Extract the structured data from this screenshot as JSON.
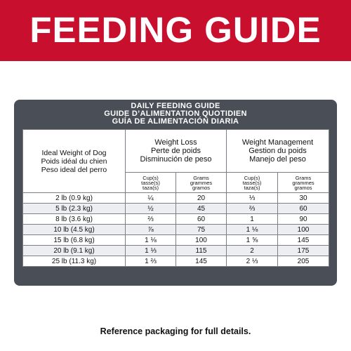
{
  "banner": {
    "title": "FEEDING GUIDE",
    "color": "#c8102e"
  },
  "card": {
    "title_lines": [
      "DAILY FEEDING GUIDE",
      "GUIDE D’ALIMENTATION QUOTIDIEN",
      "GUÍA DE ALIMENTACIÓN DIARIA"
    ],
    "color": "#4a4f57"
  },
  "table": {
    "ideal_header": [
      "Ideal Weight of Dog",
      "Poids idéal du chien",
      "Peso ideal del perro"
    ],
    "groups": [
      {
        "lines": [
          "Weight Loss",
          "Perte de poids",
          "Disminución de peso"
        ]
      },
      {
        "lines": [
          "Weight Management",
          "Gestion du poids",
          "Manejo del peso"
        ]
      }
    ],
    "sub_cup": [
      "Cup(s)",
      "tasse(s)",
      "taza(s)"
    ],
    "sub_grams": [
      "Grams",
      "grammes",
      "gramos"
    ],
    "rows": [
      {
        "weight": "2 lb (0.9 kg)",
        "loss_cup": "¼",
        "loss_g": "20",
        "mgmt_cup": "⅓",
        "mgmt_g": "30"
      },
      {
        "weight": "5 lb (2.3 kg)",
        "loss_cup": "½",
        "loss_g": "45",
        "mgmt_cup": "⅔",
        "mgmt_g": "60"
      },
      {
        "weight": "8 lb (3.6 kg)",
        "loss_cup": "⅔",
        "loss_g": "60",
        "mgmt_cup": "1",
        "mgmt_g": "90"
      },
      {
        "weight": "10 lb (4.5 kg)",
        "loss_cup": "⅞",
        "loss_g": "75",
        "mgmt_cup": "1 ⅛",
        "mgmt_g": "100"
      },
      {
        "weight": "15 lb (6.8 kg)",
        "loss_cup": "1 ⅛",
        "loss_g": "100",
        "mgmt_cup": "1 ⅝",
        "mgmt_g": "145"
      },
      {
        "weight": "20 lb (9.1 kg)",
        "loss_cup": "1 ⅓",
        "loss_g": "115",
        "mgmt_cup": "2",
        "mgmt_g": "175"
      },
      {
        "weight": "25 lb (11.3 kg)",
        "loss_cup": "1 ⅔",
        "loss_g": "145",
        "mgmt_cup": "2 ⅓",
        "mgmt_g": "205"
      }
    ]
  },
  "footer": "Reference packaging for full details."
}
